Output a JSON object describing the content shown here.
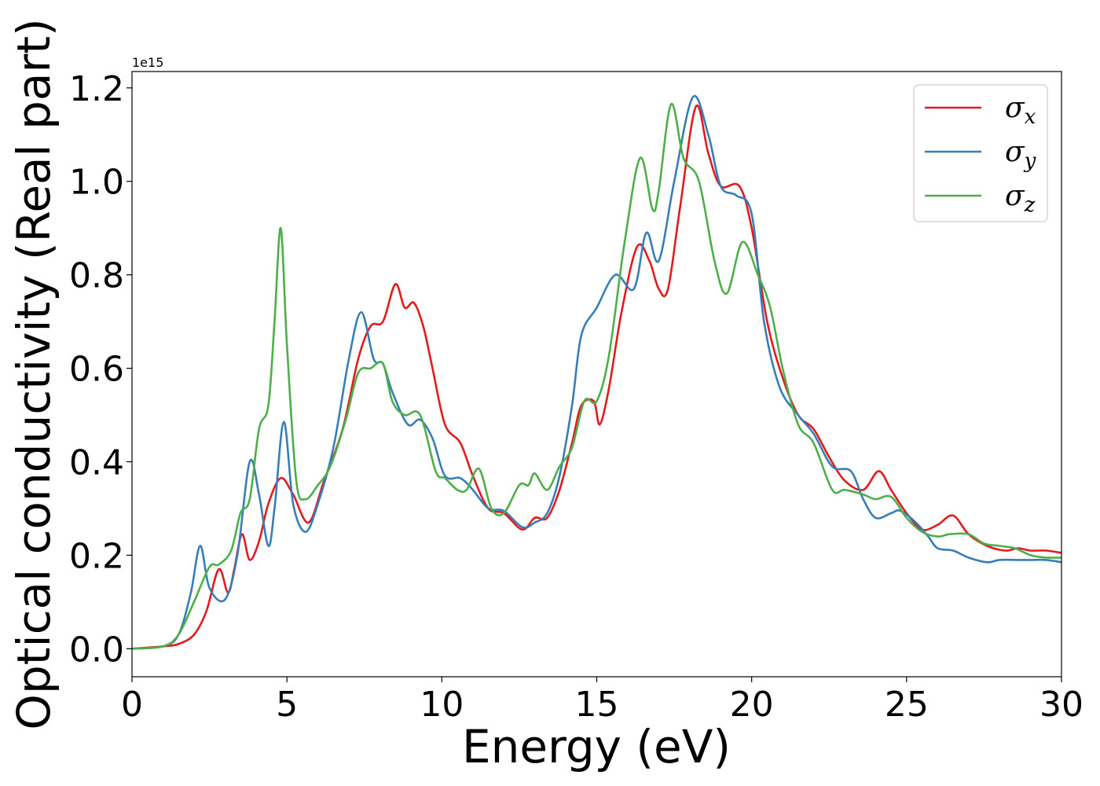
{
  "chart_data": {
    "type": "line",
    "title": "",
    "xlabel": "Energy (eV)",
    "ylabel": "Optical conductivity (Real part)",
    "y_offset_label": "1e15",
    "xlim": [
      0,
      30
    ],
    "ylim": [
      -0.06,
      1.235
    ],
    "x_ticks": [
      0,
      5,
      10,
      15,
      20,
      25,
      30
    ],
    "x_tick_labels": [
      "0",
      "5",
      "10",
      "15",
      "20",
      "25",
      "30"
    ],
    "y_ticks": [
      0.0,
      0.2,
      0.4,
      0.6,
      0.8,
      1.0,
      1.2
    ],
    "y_tick_labels": [
      "0.0",
      "0.2",
      "0.4",
      "0.6",
      "0.8",
      "1.0",
      "1.2"
    ],
    "grid": false,
    "legend_position": "top-right",
    "series": [
      {
        "name": "σx",
        "symbol": "σ",
        "subscript": "x",
        "color": "#e41a1c",
        "points": [
          [
            0,
            0
          ],
          [
            1,
            0.005
          ],
          [
            1.5,
            0.01
          ],
          [
            2,
            0.03
          ],
          [
            2.4,
            0.08
          ],
          [
            2.8,
            0.17
          ],
          [
            3.1,
            0.12
          ],
          [
            3.3,
            0.17
          ],
          [
            3.55,
            0.245
          ],
          [
            3.8,
            0.19
          ],
          [
            4.1,
            0.23
          ],
          [
            4.4,
            0.31
          ],
          [
            4.8,
            0.365
          ],
          [
            5.2,
            0.33
          ],
          [
            5.7,
            0.27
          ],
          [
            6.2,
            0.36
          ],
          [
            6.8,
            0.47
          ],
          [
            7.3,
            0.62
          ],
          [
            7.7,
            0.69
          ],
          [
            8.1,
            0.7
          ],
          [
            8.5,
            0.78
          ],
          [
            8.8,
            0.73
          ],
          [
            9.1,
            0.74
          ],
          [
            9.4,
            0.69
          ],
          [
            9.7,
            0.6
          ],
          [
            10.1,
            0.48
          ],
          [
            10.6,
            0.44
          ],
          [
            11.0,
            0.37
          ],
          [
            11.5,
            0.3
          ],
          [
            12.0,
            0.29
          ],
          [
            12.6,
            0.255
          ],
          [
            13.0,
            0.28
          ],
          [
            13.4,
            0.28
          ],
          [
            13.8,
            0.34
          ],
          [
            14.2,
            0.44
          ],
          [
            14.5,
            0.52
          ],
          [
            14.9,
            0.53
          ],
          [
            15.1,
            0.48
          ],
          [
            15.4,
            0.56
          ],
          [
            15.8,
            0.72
          ],
          [
            16.3,
            0.86
          ],
          [
            16.7,
            0.83
          ],
          [
            17.0,
            0.77
          ],
          [
            17.3,
            0.77
          ],
          [
            17.7,
            0.95
          ],
          [
            18.2,
            1.16
          ],
          [
            18.6,
            1.06
          ],
          [
            19.0,
            0.99
          ],
          [
            19.6,
            0.99
          ],
          [
            20.0,
            0.9
          ],
          [
            20.5,
            0.7
          ],
          [
            21.0,
            0.58
          ],
          [
            21.5,
            0.5
          ],
          [
            22.0,
            0.47
          ],
          [
            22.5,
            0.41
          ],
          [
            23.0,
            0.36
          ],
          [
            23.6,
            0.34
          ],
          [
            24.1,
            0.38
          ],
          [
            24.5,
            0.34
          ],
          [
            25.0,
            0.29
          ],
          [
            25.5,
            0.255
          ],
          [
            26.0,
            0.265
          ],
          [
            26.5,
            0.285
          ],
          [
            27.0,
            0.245
          ],
          [
            27.6,
            0.22
          ],
          [
            28.2,
            0.21
          ],
          [
            28.6,
            0.215
          ],
          [
            29.0,
            0.21
          ],
          [
            29.5,
            0.21
          ],
          [
            30,
            0.205
          ]
        ]
      },
      {
        "name": "σy",
        "symbol": "σ",
        "subscript": "y",
        "color": "#377eb8",
        "points": [
          [
            0,
            0
          ],
          [
            1,
            0.005
          ],
          [
            1.5,
            0.03
          ],
          [
            1.9,
            0.12
          ],
          [
            2.2,
            0.22
          ],
          [
            2.5,
            0.13
          ],
          [
            3.0,
            0.105
          ],
          [
            3.4,
            0.2
          ],
          [
            3.8,
            0.4
          ],
          [
            4.1,
            0.33
          ],
          [
            4.4,
            0.22
          ],
          [
            4.6,
            0.3
          ],
          [
            4.9,
            0.485
          ],
          [
            5.2,
            0.31
          ],
          [
            5.6,
            0.25
          ],
          [
            6.0,
            0.31
          ],
          [
            6.5,
            0.43
          ],
          [
            7.0,
            0.62
          ],
          [
            7.4,
            0.72
          ],
          [
            7.8,
            0.62
          ],
          [
            8.1,
            0.61
          ],
          [
            8.4,
            0.55
          ],
          [
            8.9,
            0.48
          ],
          [
            9.3,
            0.49
          ],
          [
            9.7,
            0.45
          ],
          [
            10.1,
            0.37
          ],
          [
            10.6,
            0.365
          ],
          [
            11.0,
            0.34
          ],
          [
            11.5,
            0.3
          ],
          [
            12.0,
            0.295
          ],
          [
            12.6,
            0.26
          ],
          [
            13.0,
            0.27
          ],
          [
            13.4,
            0.29
          ],
          [
            13.8,
            0.37
          ],
          [
            14.2,
            0.52
          ],
          [
            14.5,
            0.67
          ],
          [
            15.0,
            0.73
          ],
          [
            15.6,
            0.8
          ],
          [
            16.2,
            0.77
          ],
          [
            16.6,
            0.89
          ],
          [
            17.0,
            0.83
          ],
          [
            17.5,
            1.0
          ],
          [
            18.1,
            1.18
          ],
          [
            18.6,
            1.1
          ],
          [
            19.0,
            0.99
          ],
          [
            19.5,
            0.97
          ],
          [
            20.0,
            0.93
          ],
          [
            20.4,
            0.7
          ],
          [
            20.9,
            0.56
          ],
          [
            21.5,
            0.5
          ],
          [
            22.0,
            0.46
          ],
          [
            22.6,
            0.39
          ],
          [
            23.2,
            0.38
          ],
          [
            23.6,
            0.32
          ],
          [
            24.0,
            0.28
          ],
          [
            24.5,
            0.29
          ],
          [
            24.8,
            0.295
          ],
          [
            25.3,
            0.27
          ],
          [
            25.7,
            0.24
          ],
          [
            26.0,
            0.215
          ],
          [
            26.5,
            0.21
          ],
          [
            27.0,
            0.195
          ],
          [
            27.6,
            0.185
          ],
          [
            28.0,
            0.19
          ],
          [
            28.6,
            0.19
          ],
          [
            29.0,
            0.19
          ],
          [
            29.5,
            0.19
          ],
          [
            30,
            0.185
          ]
        ]
      },
      {
        "name": "σz",
        "symbol": "σ",
        "subscript": "z",
        "color": "#4daf4a",
        "points": [
          [
            0,
            0
          ],
          [
            1,
            0.005
          ],
          [
            1.5,
            0.03
          ],
          [
            2.0,
            0.1
          ],
          [
            2.5,
            0.175
          ],
          [
            2.8,
            0.18
          ],
          [
            3.2,
            0.21
          ],
          [
            3.5,
            0.29
          ],
          [
            3.8,
            0.32
          ],
          [
            4.1,
            0.47
          ],
          [
            4.4,
            0.52
          ],
          [
            4.6,
            0.7
          ],
          [
            4.8,
            0.9
          ],
          [
            5.0,
            0.65
          ],
          [
            5.3,
            0.36
          ],
          [
            5.6,
            0.32
          ],
          [
            6.0,
            0.35
          ],
          [
            6.4,
            0.39
          ],
          [
            6.9,
            0.49
          ],
          [
            7.3,
            0.59
          ],
          [
            7.7,
            0.6
          ],
          [
            8.1,
            0.61
          ],
          [
            8.4,
            0.53
          ],
          [
            8.8,
            0.5
          ],
          [
            9.3,
            0.5
          ],
          [
            9.8,
            0.38
          ],
          [
            10.1,
            0.365
          ],
          [
            10.5,
            0.34
          ],
          [
            10.8,
            0.34
          ],
          [
            11.2,
            0.385
          ],
          [
            11.6,
            0.3
          ],
          [
            12.0,
            0.29
          ],
          [
            12.5,
            0.35
          ],
          [
            12.8,
            0.35
          ],
          [
            13.0,
            0.375
          ],
          [
            13.4,
            0.34
          ],
          [
            13.8,
            0.39
          ],
          [
            14.2,
            0.43
          ],
          [
            14.6,
            0.53
          ],
          [
            15.0,
            0.53
          ],
          [
            15.4,
            0.63
          ],
          [
            15.9,
            0.87
          ],
          [
            16.4,
            1.05
          ],
          [
            16.8,
            0.94
          ],
          [
            17.0,
            0.98
          ],
          [
            17.4,
            1.165
          ],
          [
            17.8,
            1.05
          ],
          [
            18.3,
            1.0
          ],
          [
            18.8,
            0.83
          ],
          [
            19.2,
            0.76
          ],
          [
            19.7,
            0.87
          ],
          [
            20.2,
            0.8
          ],
          [
            20.6,
            0.73
          ],
          [
            21.0,
            0.6
          ],
          [
            21.5,
            0.48
          ],
          [
            22.0,
            0.44
          ],
          [
            22.6,
            0.34
          ],
          [
            23.0,
            0.34
          ],
          [
            23.6,
            0.33
          ],
          [
            24.0,
            0.32
          ],
          [
            24.5,
            0.325
          ],
          [
            25.0,
            0.28
          ],
          [
            25.5,
            0.25
          ],
          [
            26.0,
            0.24
          ],
          [
            26.4,
            0.245
          ],
          [
            27.0,
            0.245
          ],
          [
            27.5,
            0.225
          ],
          [
            28.0,
            0.22
          ],
          [
            28.5,
            0.215
          ],
          [
            29.0,
            0.2
          ],
          [
            29.5,
            0.195
          ],
          [
            30,
            0.195
          ]
        ]
      }
    ]
  }
}
